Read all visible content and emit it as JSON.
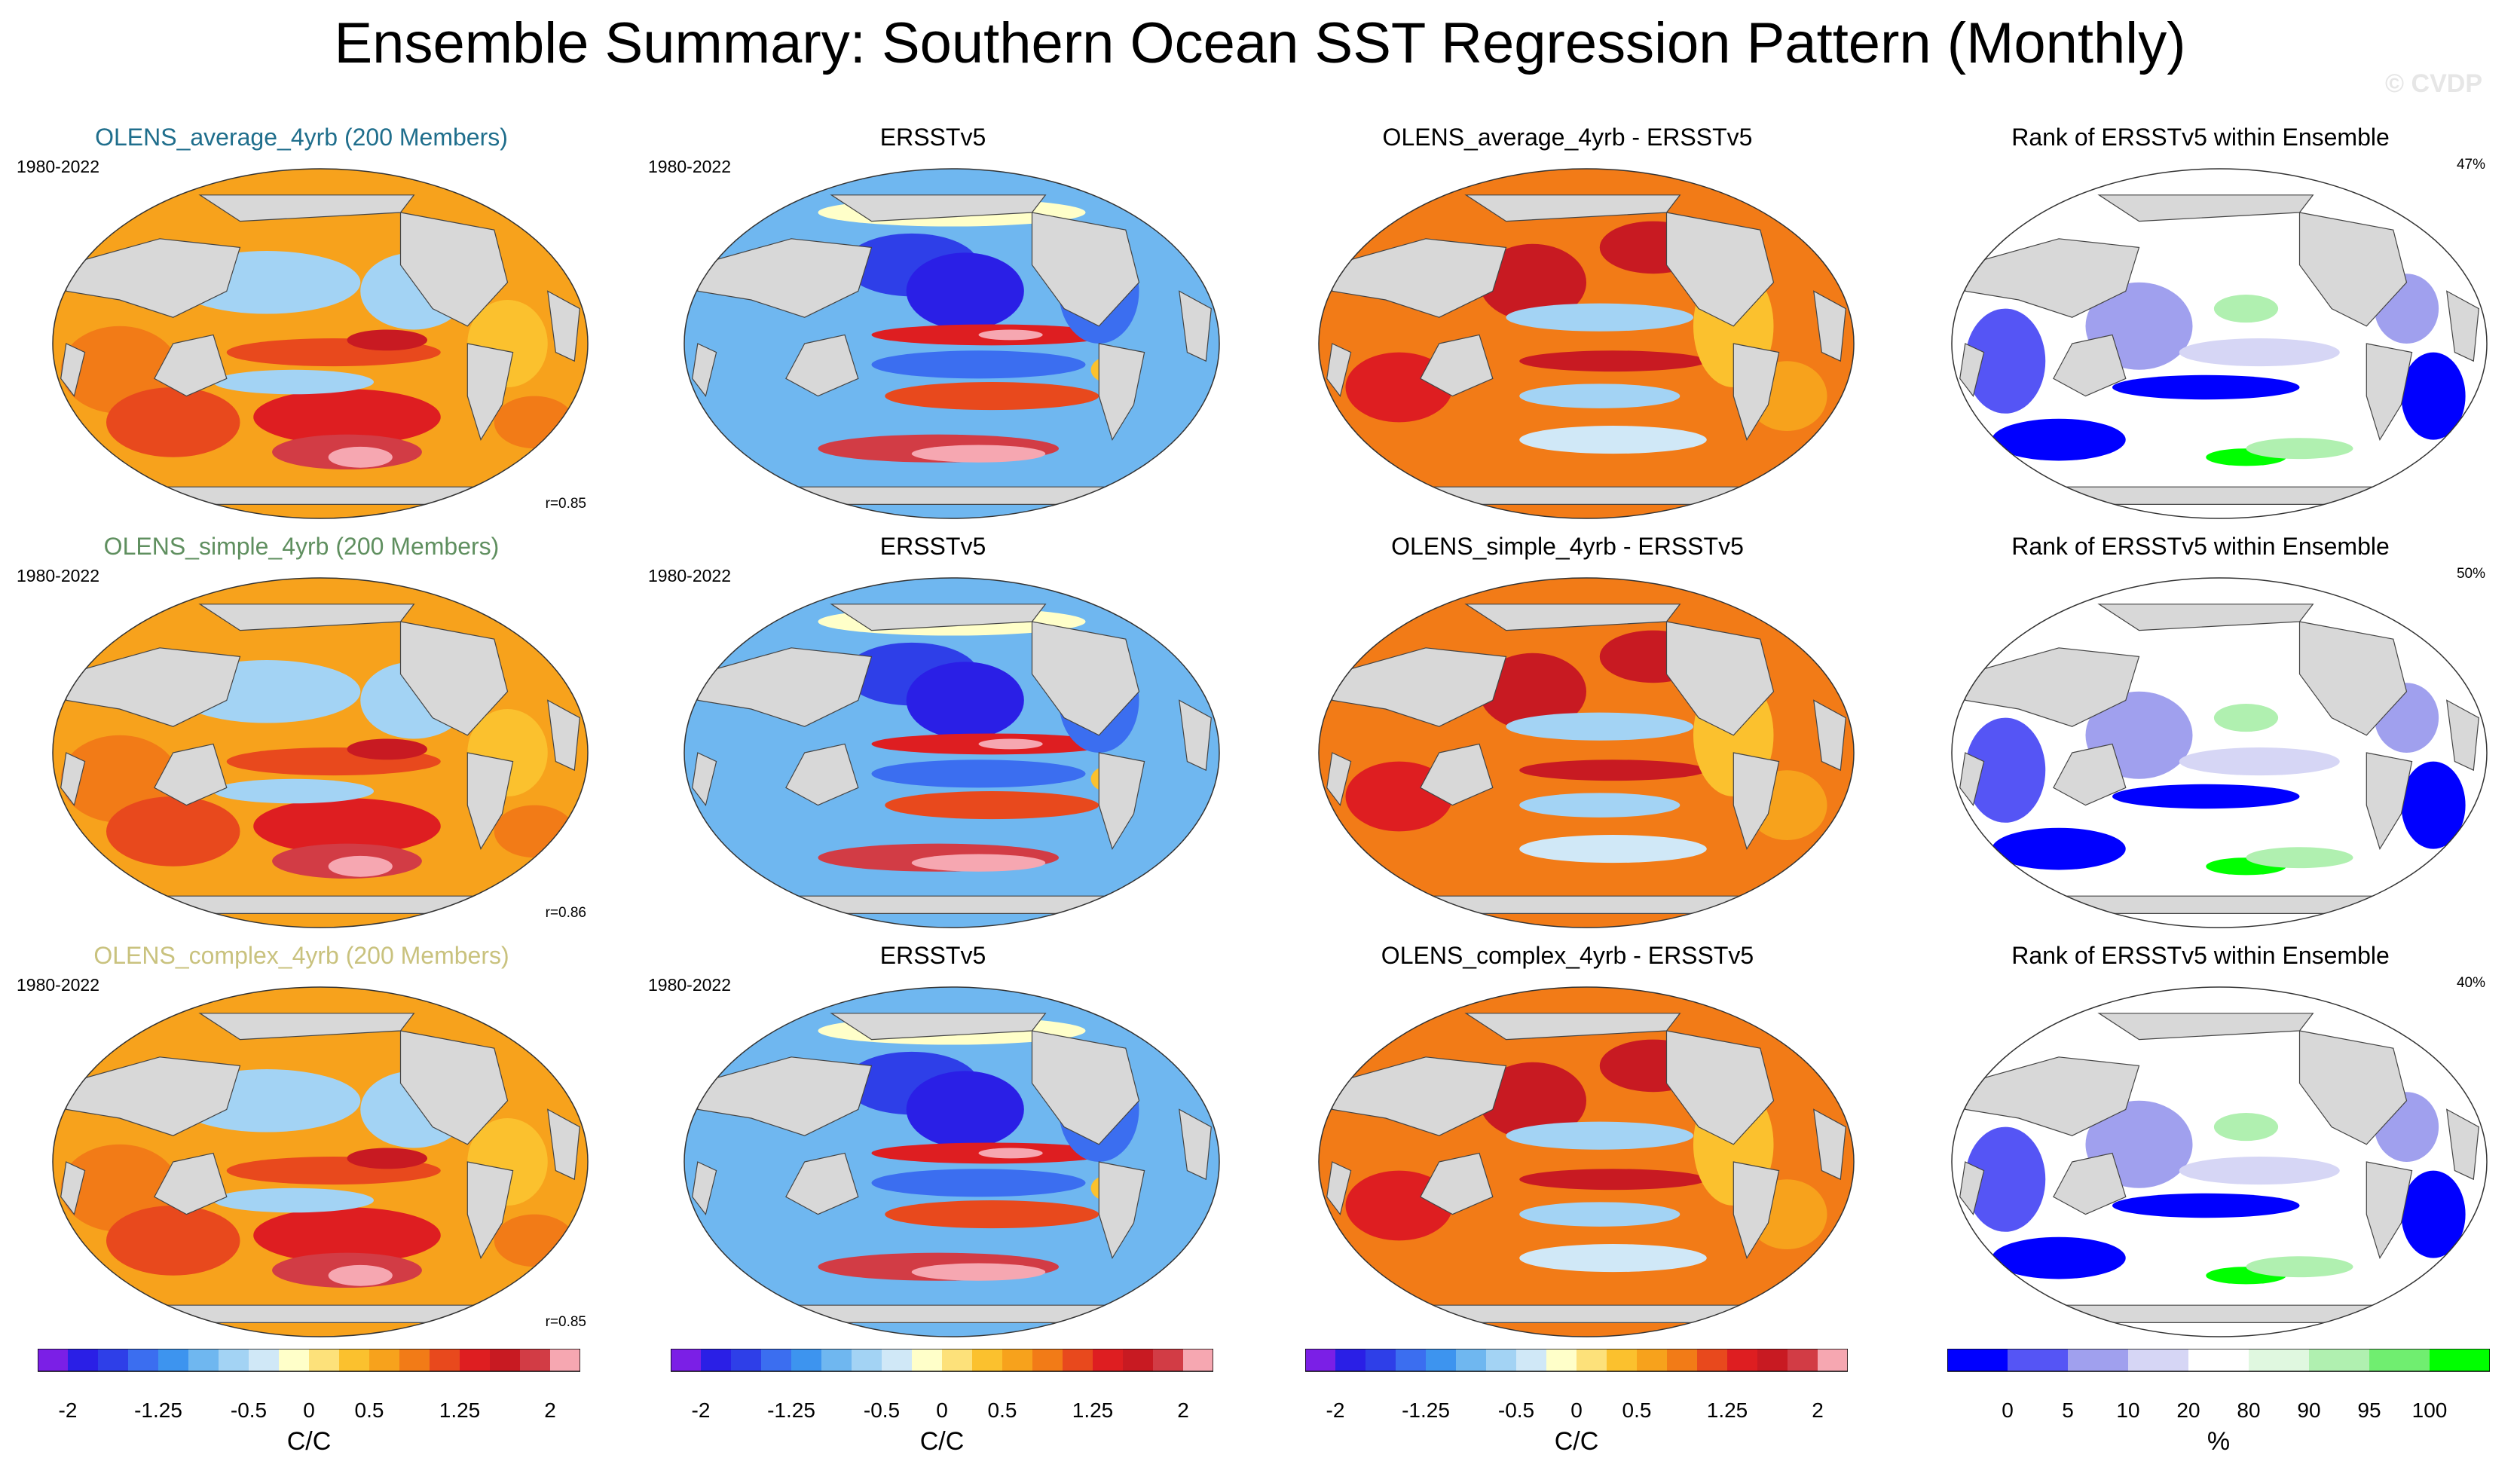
{
  "title": "Ensemble Summary: Southern Ocean SST Regression Pattern (Monthly)",
  "watermark": "© CVDP",
  "colors": {
    "diverging": [
      "#7b1fe6",
      "#2a1fe6",
      "#2e3fe8",
      "#3b6ef0",
      "#3d94ef",
      "#6fb7f0",
      "#a3d3f4",
      "#d0e8f7",
      "#ffffc9",
      "#fde17a",
      "#fbc12e",
      "#f7a21c",
      "#f27b17",
      "#e8491d",
      "#de1e21",
      "#c81a22",
      "#d23c45",
      "#f6a7b1"
    ],
    "rank": [
      "#0000ff",
      "#5555f5",
      "#a0a0ee",
      "#d6d6f5",
      "#ffffff",
      "#e0f8e0",
      "#b0f0b0",
      "#70ee70",
      "#00ff00"
    ],
    "land": "#d8d8d8",
    "title_row1": "#1f6e8c",
    "title_row2": "#5f8f5f",
    "title_row3": "#c9c27e"
  },
  "rows": [
    {
      "ensemble_title": "OLENS_average_4yrb (200 Members)",
      "period": "1980-2022",
      "correlation": "r=0.85",
      "obs_title": "ERSSTv5",
      "obs_period": "1980-2022",
      "diff_title": "OLENS_average_4yrb - ERSSTv5",
      "rank_title": "Rank of ERSSTv5 within Ensemble",
      "rank_pct": "47%"
    },
    {
      "ensemble_title": "OLENS_simple_4yrb (200 Members)",
      "period": "1980-2022",
      "correlation": "r=0.86",
      "obs_title": "ERSSTv5",
      "obs_period": "1980-2022",
      "diff_title": "OLENS_simple_4yrb - ERSSTv5",
      "rank_title": "Rank of ERSSTv5 within Ensemble",
      "rank_pct": "50%"
    },
    {
      "ensemble_title": "OLENS_complex_4yrb (200 Members)",
      "period": "1980-2022",
      "correlation": "r=0.85",
      "obs_title": "ERSSTv5",
      "obs_period": "1980-2022",
      "diff_title": "OLENS_complex_4yrb - ERSSTv5",
      "rank_title": "Rank of ERSSTv5 within Ensemble",
      "rank_pct": "40%"
    }
  ],
  "chart_data": {
    "type": "heatmap",
    "title": "Ensemble Summary: Southern Ocean SST Regression Pattern (Monthly)",
    "projection": "Robinson (Pacific-centered)",
    "colorbars": [
      {
        "name": "regression",
        "unit": "C/C",
        "tick_labels": [
          "-2",
          "-1.25",
          "-0.5",
          "0",
          "0.5",
          "1.25",
          "2"
        ],
        "tick_values": [
          -2,
          -1.25,
          -0.5,
          0,
          0.5,
          1.25,
          2
        ],
        "range": [
          -2.25,
          2.25
        ],
        "levels": 18
      },
      {
        "name": "rank",
        "unit": "%",
        "tick_labels": [
          "0",
          "5",
          "10",
          "20",
          "80",
          "90",
          "95",
          "100"
        ],
        "bins": 9
      }
    ],
    "panels": [
      {
        "row": 1,
        "column": "ensemble mean",
        "label": "OLENS_average_4yrb (200 Members)",
        "pattern_correlation": 0.85
      },
      {
        "row": 1,
        "column": "observations",
        "label": "ERSSTv5"
      },
      {
        "row": 1,
        "column": "difference",
        "label": "OLENS_average_4yrb - ERSSTv5"
      },
      {
        "row": 1,
        "column": "rank",
        "label": "Rank of ERSSTv5 within Ensemble",
        "percent": 47
      },
      {
        "row": 2,
        "column": "ensemble mean",
        "label": "OLENS_simple_4yrb (200 Members)",
        "pattern_correlation": 0.86
      },
      {
        "row": 2,
        "column": "observations",
        "label": "ERSSTv5"
      },
      {
        "row": 2,
        "column": "difference",
        "label": "OLENS_simple_4yrb - ERSSTv5"
      },
      {
        "row": 2,
        "column": "rank",
        "label": "Rank of ERSSTv5 within Ensemble",
        "percent": 50
      },
      {
        "row": 3,
        "column": "ensemble mean",
        "label": "OLENS_complex_4yrb (200 Members)",
        "pattern_correlation": 0.85
      },
      {
        "row": 3,
        "column": "observations",
        "label": "ERSSTv5"
      },
      {
        "row": 3,
        "column": "difference",
        "label": "OLENS_complex_4yrb - ERSSTv5"
      },
      {
        "row": 3,
        "column": "rank",
        "label": "Rank of ERSSTv5 within Ensemble",
        "percent": 40
      }
    ]
  },
  "colorbar_labels": {
    "reg_unit": "C/C",
    "rank_unit": "%",
    "reg_ticks": [
      "-2",
      "-1.25",
      "-0.5",
      "0",
      "0.5",
      "1.25",
      "2"
    ],
    "rank_ticks": [
      "0",
      "5",
      "10",
      "20",
      "80",
      "90",
      "95",
      "100"
    ]
  }
}
